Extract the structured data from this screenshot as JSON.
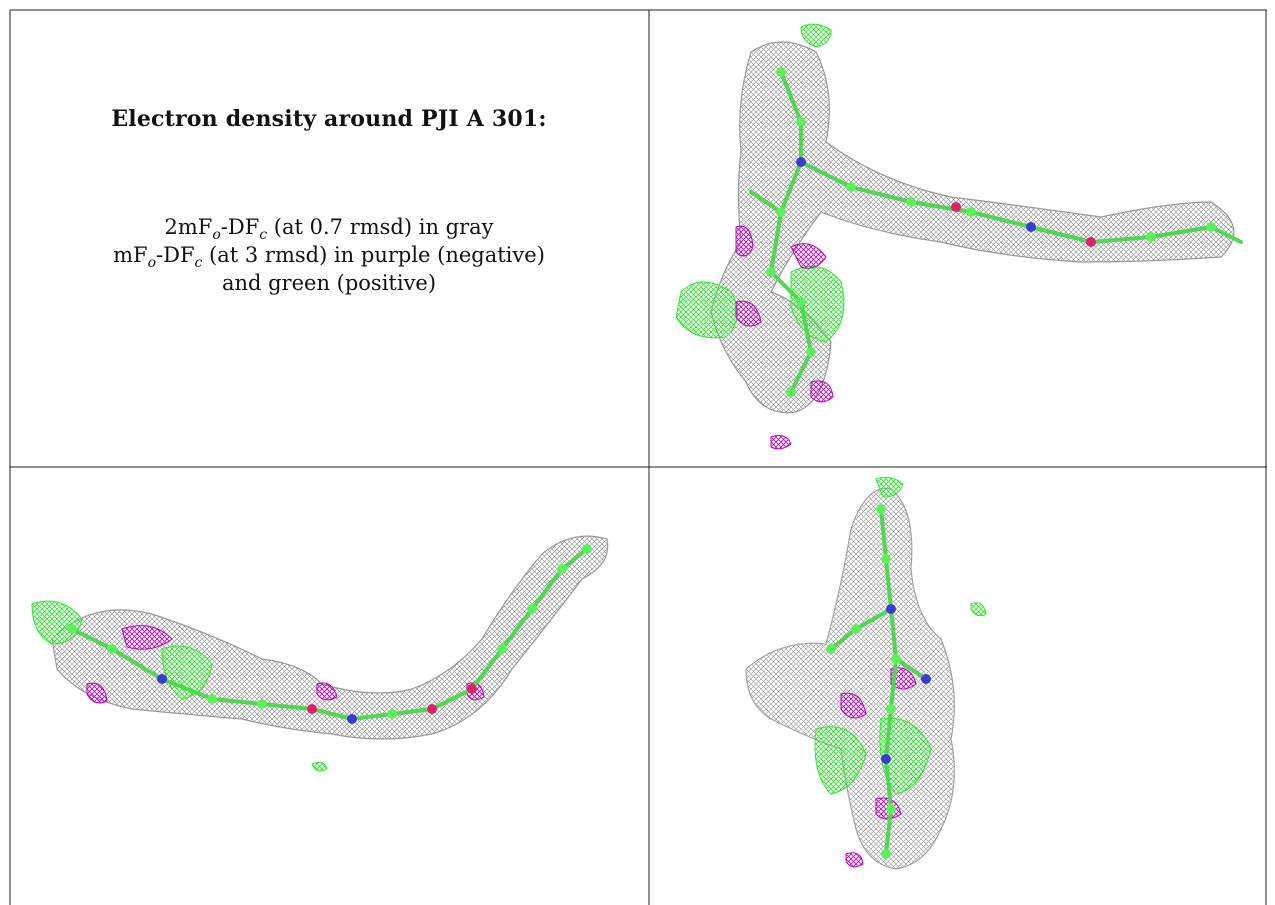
{
  "caption": {
    "title": "Electron density around PJI A 301:",
    "line1": {
      "pre": "2mF",
      "sub1": "o",
      "mid": "-DF",
      "sub2": "c",
      "post": " (at 0.7 rmsd) in gray"
    },
    "line2": {
      "pre": "mF",
      "sub1": "o",
      "mid": "-DF",
      "sub2": "c",
      "post": " (at 3 rmsd) in purple (negative)"
    },
    "line3": "and green (positive)"
  },
  "colors": {
    "mesh_gray": "#8a8a8a",
    "negative_purple": "#c000c0",
    "positive_green": "#2ee82e",
    "atom_green": "#5cf05c",
    "atom_nitrogen": "#3b3bd0",
    "atom_oxygen": "#e0206a"
  },
  "panels": [
    {
      "view": "top-right"
    },
    {
      "view": "bottom-left"
    },
    {
      "view": "bottom-right"
    }
  ]
}
